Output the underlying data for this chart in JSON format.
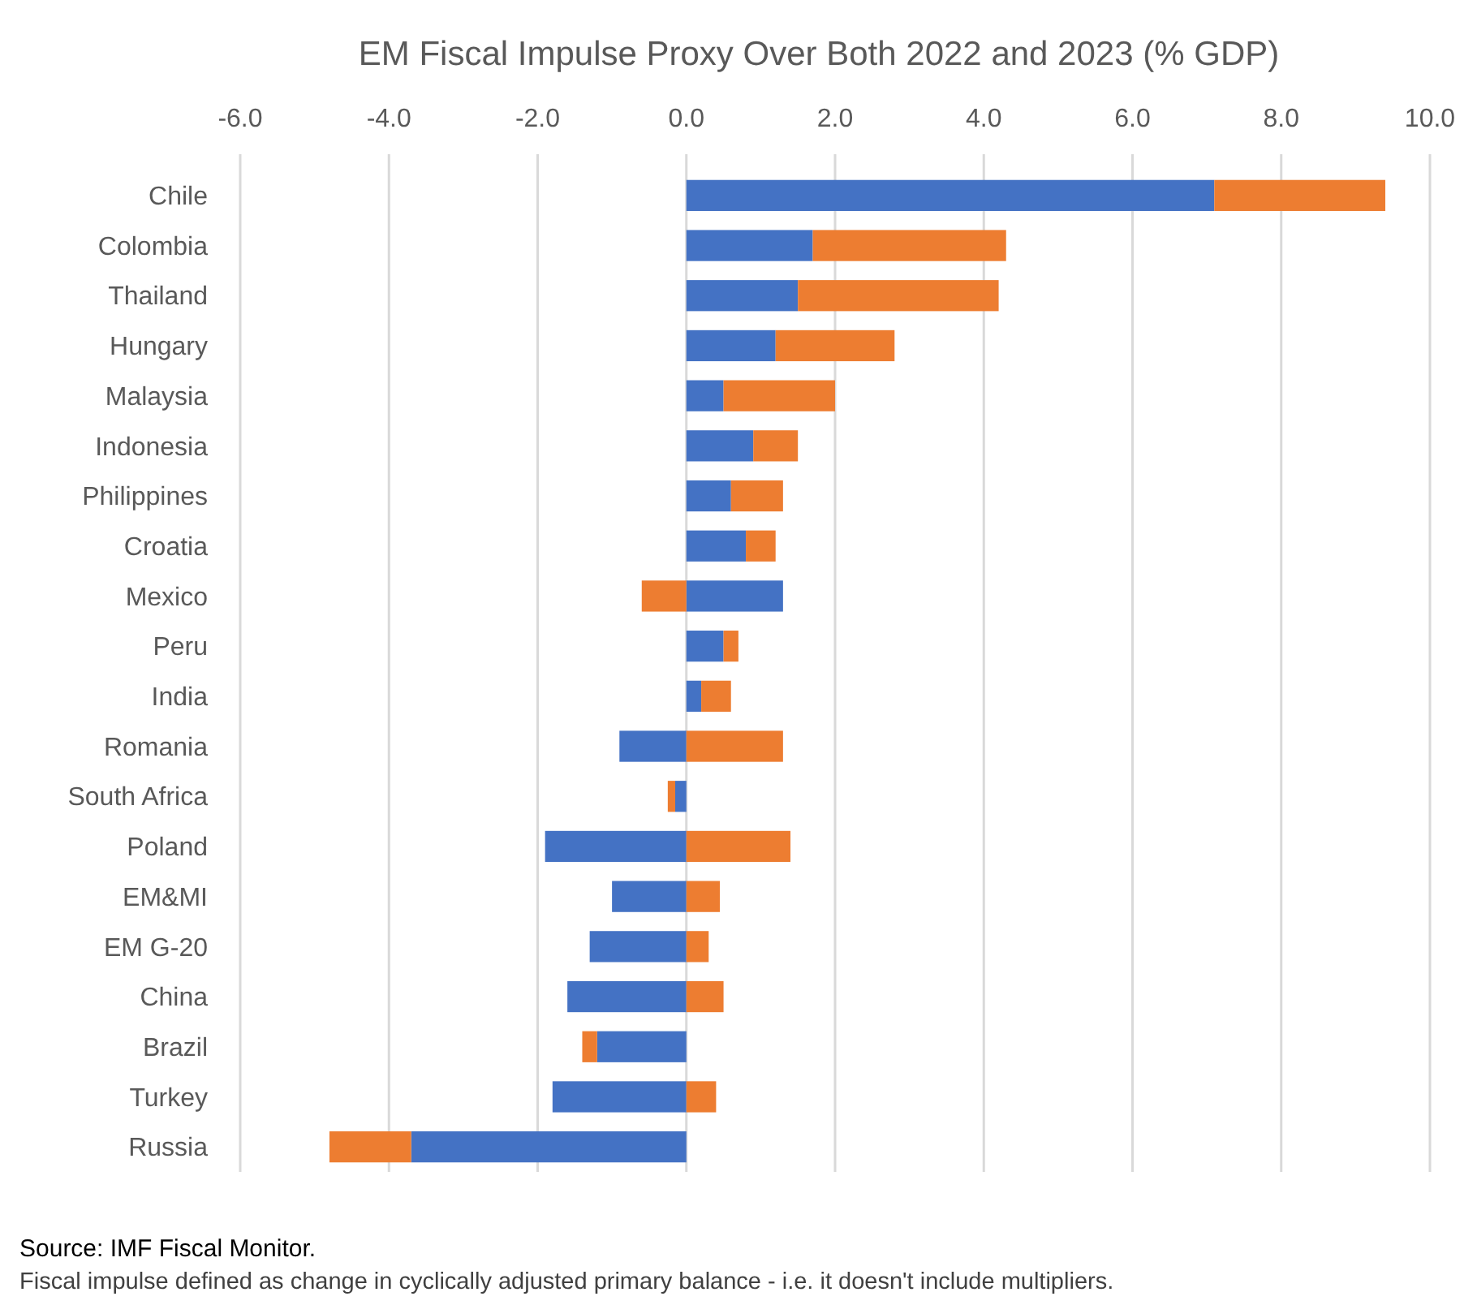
{
  "chart_data": {
    "type": "bar",
    "orientation": "horizontal",
    "stacked": true,
    "title": "EM Fiscal Impulse Proxy Over Both 2022 and 2023 (% GDP)",
    "categories": [
      "Chile",
      "Colombia",
      "Thailand",
      "Hungary",
      "Malaysia",
      "Indonesia",
      "Philippines",
      "Croatia",
      "Mexico",
      "Peru",
      "India",
      "Romania",
      "South Africa",
      "Poland",
      "EM&MI",
      "EM G-20",
      "China",
      "Brazil",
      "Turkey",
      "Russia"
    ],
    "series": [
      {
        "color": "#4472c4",
        "values": [
          7.1,
          1.7,
          1.5,
          1.2,
          0.5,
          0.9,
          0.6,
          0.8,
          1.3,
          0.5,
          0.2,
          -0.9,
          -0.15,
          -1.9,
          -1.0,
          -1.3,
          -1.6,
          -1.2,
          -1.8,
          -3.7
        ]
      },
      {
        "color": "#ed7d31",
        "values": [
          2.3,
          2.6,
          2.7,
          1.6,
          1.5,
          0.6,
          0.7,
          0.4,
          -0.6,
          0.2,
          0.4,
          1.3,
          -0.1,
          1.4,
          0.45,
          0.3,
          0.5,
          -0.2,
          0.4,
          -1.1
        ]
      }
    ],
    "xlim": [
      -6,
      10
    ],
    "xticks": [
      {
        "value": -6,
        "label": "-6.0"
      },
      {
        "value": -4,
        "label": "-4.0"
      },
      {
        "value": -2,
        "label": "-2.0"
      },
      {
        "value": 0,
        "label": "0.0"
      },
      {
        "value": 2,
        "label": "2.0"
      },
      {
        "value": 4,
        "label": "4.0"
      },
      {
        "value": 6,
        "label": "6.0"
      },
      {
        "value": 8,
        "label": "8.0"
      },
      {
        "value": 10,
        "label": "10.0"
      }
    ],
    "grid": "x",
    "annotations": [
      "Source: IMF Fiscal Monitor.",
      "Fiscal impulse defined as change in cyclically adjusted primary balance - i.e. it doesn't include multipliers."
    ]
  }
}
